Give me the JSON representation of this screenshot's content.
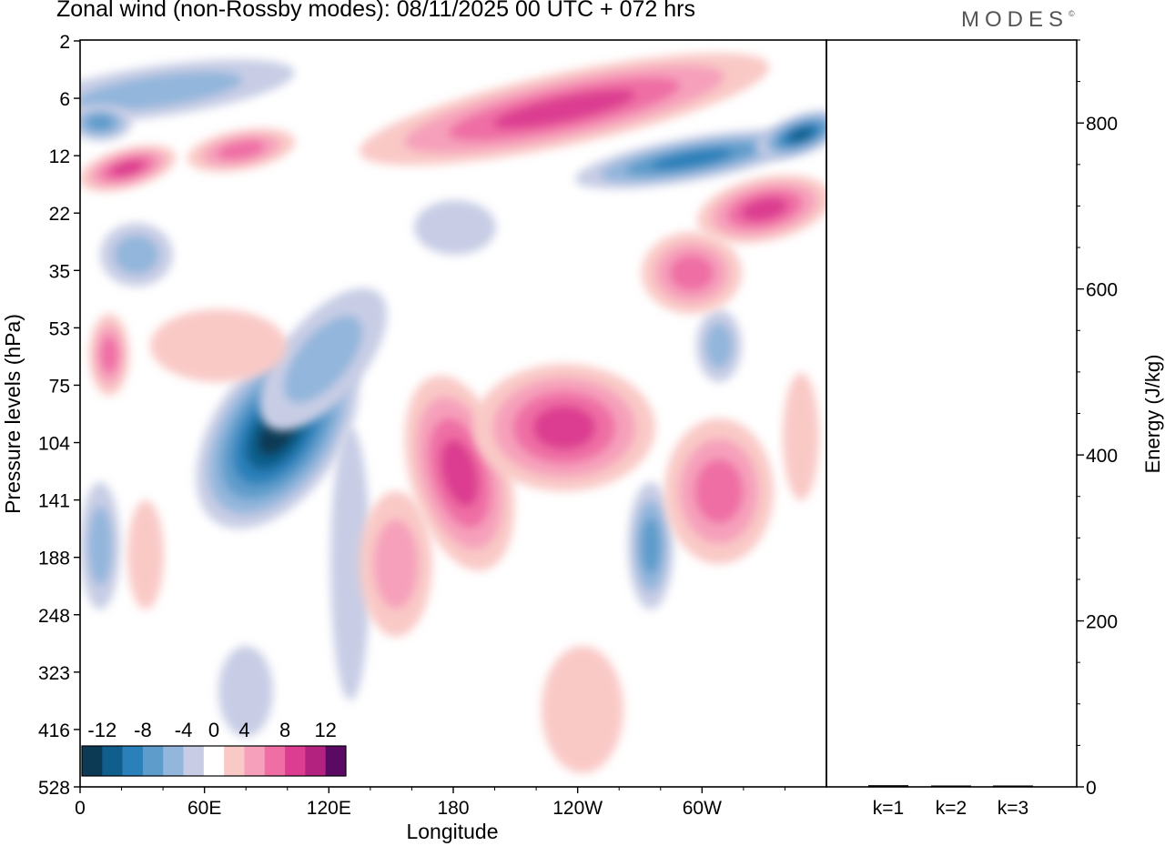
{
  "title": "Zonal wind (non-Rossby modes):  08/11/2025  00 UTC  + 072 hrs",
  "logo": {
    "text": "MODES",
    "mark": "©"
  },
  "chart_data": [
    {
      "type": "heatmap",
      "title": "Zonal wind (non-Rossby modes):  08/11/2025  00 UTC  + 072 hrs",
      "xlabel": "Longitude",
      "ylabel": "Pressure levels (hPa)",
      "x_ticks": [
        {
          "label": "0",
          "lon": 0
        },
        {
          "label": "60E",
          "lon": 60
        },
        {
          "label": "120E",
          "lon": 120
        },
        {
          "label": "180",
          "lon": 180
        },
        {
          "label": "120W",
          "lon": 240
        },
        {
          "label": "60W",
          "lon": 300
        }
      ],
      "xlim": [
        0,
        360
      ],
      "y_ticks": [
        "2",
        "6",
        "12",
        "22",
        "35",
        "53",
        "75",
        "104",
        "141",
        "188",
        "248",
        "323",
        "416",
        "528"
      ],
      "colorbar": {
        "labels": [
          "-12",
          "-8",
          "-4",
          "0",
          "4",
          "8",
          "12"
        ],
        "levels": [
          -14,
          -12,
          -10,
          -8,
          -6,
          -4,
          -2,
          2,
          4,
          6,
          8,
          10,
          12,
          14
        ],
        "colors": [
          "#0c3a55",
          "#0f5e8c",
          "#2b80ba",
          "#5e9ccb",
          "#93b6dc",
          "#c8cde5",
          "#ffffff",
          "#f9c9c6",
          "#f6a0bb",
          "#ef6ea4",
          "#dc3d90",
          "#b3227f",
          "#5b0a63"
        ]
      },
      "features": [
        {
          "lon": 95,
          "level": "104-141",
          "value": -14
        },
        {
          "lon": 80,
          "level": "141",
          "value": -10
        },
        {
          "lon": 30,
          "level": "12",
          "value": 8
        },
        {
          "lon": 240,
          "level": "6-12",
          "value": 8
        },
        {
          "lon": 320,
          "level": "22",
          "value": 8
        },
        {
          "lon": 288,
          "level": "12",
          "value": -10
        },
        {
          "lon": 360,
          "level": "6-12",
          "value": -12
        },
        {
          "lon": 185,
          "level": "104-188",
          "value": 8
        },
        {
          "lon": 240,
          "level": "104-188",
          "value": 6
        },
        {
          "lon": 290,
          "level": "141-188",
          "value": 6
        },
        {
          "lon": 275,
          "level": "141-248",
          "value": -8
        },
        {
          "lon": 145,
          "level": "188-248",
          "value": 6
        },
        {
          "lon": 235,
          "level": "323-528",
          "value": 4
        }
      ]
    },
    {
      "type": "bar",
      "ylabel": "Energy (J/kg)",
      "ylim": [
        0,
        900
      ],
      "y_ticks": [
        "0",
        "200",
        "400",
        "600",
        "800"
      ],
      "categories": [
        "k=1",
        "k=2",
        "k=3"
      ],
      "values": [
        2,
        1.5,
        1
      ]
    }
  ]
}
